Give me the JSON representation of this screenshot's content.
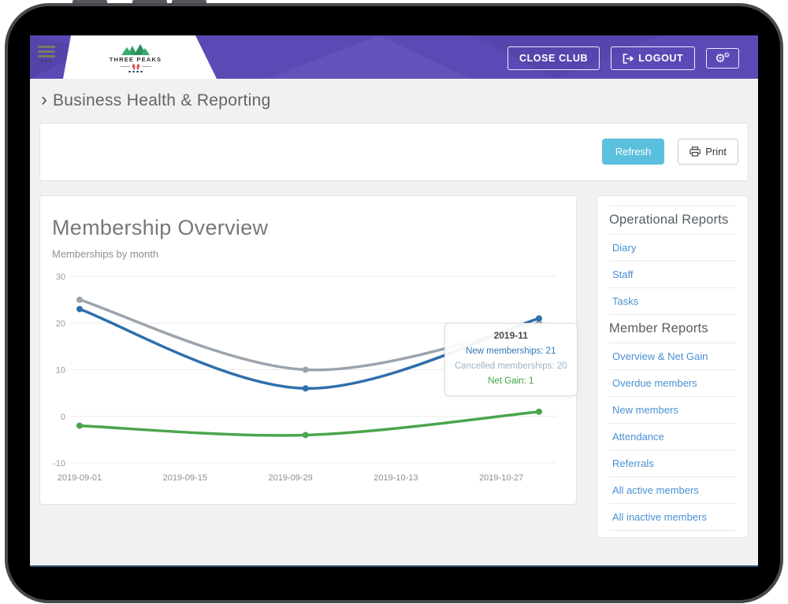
{
  "header": {
    "logo_text": "THREE PEAKS",
    "close_club_label": "CLOSE CLUB",
    "logout_label": "LOGOUT"
  },
  "breadcrumb": {
    "chevron": "›",
    "title": "Business Health & Reporting"
  },
  "toolbar": {
    "refresh_label": "Refresh",
    "print_label": "Print"
  },
  "chart_card": {
    "title": "Membership Overview",
    "subtitle": "Memberships by month"
  },
  "chart_data": {
    "type": "line",
    "title": "Membership Overview",
    "subtitle": "Memberships by month",
    "x": [
      "2019-09",
      "2019-10",
      "2019-11"
    ],
    "x_days": [
      0,
      30,
      61
    ],
    "x_span": 61,
    "x_tick_labels": [
      "2019-09-01",
      "2019-09-15",
      "2019-09-29",
      "2019-10-13",
      "2019-10-27"
    ],
    "x_tick_days": [
      0,
      14,
      28,
      42,
      56
    ],
    "y_ticks": [
      30,
      20,
      10,
      0,
      -10
    ],
    "ylim": [
      -10,
      30
    ],
    "grid": true,
    "legend": false,
    "series": [
      {
        "name": "Cancelled memberships",
        "values": [
          25,
          10,
          20
        ],
        "color": "#9ba4ad"
      },
      {
        "name": "New memberships",
        "values": [
          23,
          6,
          21
        ],
        "color": "#2e6fad"
      },
      {
        "name": "Net Gain",
        "values": [
          -2,
          -4,
          1
        ],
        "color": "#4aa54d"
      }
    ]
  },
  "tooltip": {
    "title": "2019-11",
    "lines": [
      {
        "text": "New memberships: 21",
        "color": "#337ab7"
      },
      {
        "text": "Cancelled memberships: 20",
        "color": "#9eb4c6"
      },
      {
        "text": "Net Gain: 1",
        "color": "#43a047"
      }
    ]
  },
  "sidebar": {
    "items": [
      {
        "type": "heading",
        "label": "Operational Reports"
      },
      {
        "type": "link",
        "label": "Diary"
      },
      {
        "type": "link",
        "label": "Staff"
      },
      {
        "type": "link",
        "label": "Tasks"
      },
      {
        "type": "heading",
        "label": "Member Reports"
      },
      {
        "type": "link",
        "label": "Overview & Net Gain"
      },
      {
        "type": "link",
        "label": "Overdue members"
      },
      {
        "type": "link",
        "label": "New members"
      },
      {
        "type": "link",
        "label": "Attendance"
      },
      {
        "type": "link",
        "label": "Referrals"
      },
      {
        "type": "link",
        "label": "All active members"
      },
      {
        "type": "link",
        "label": "All inactive members"
      }
    ]
  },
  "colors": {
    "header_purple": "#5b49b6",
    "refresh_cyan": "#5bc0de",
    "link_blue": "#4a90d2",
    "grid_gray": "#ececec",
    "axis_label": "#989898"
  }
}
